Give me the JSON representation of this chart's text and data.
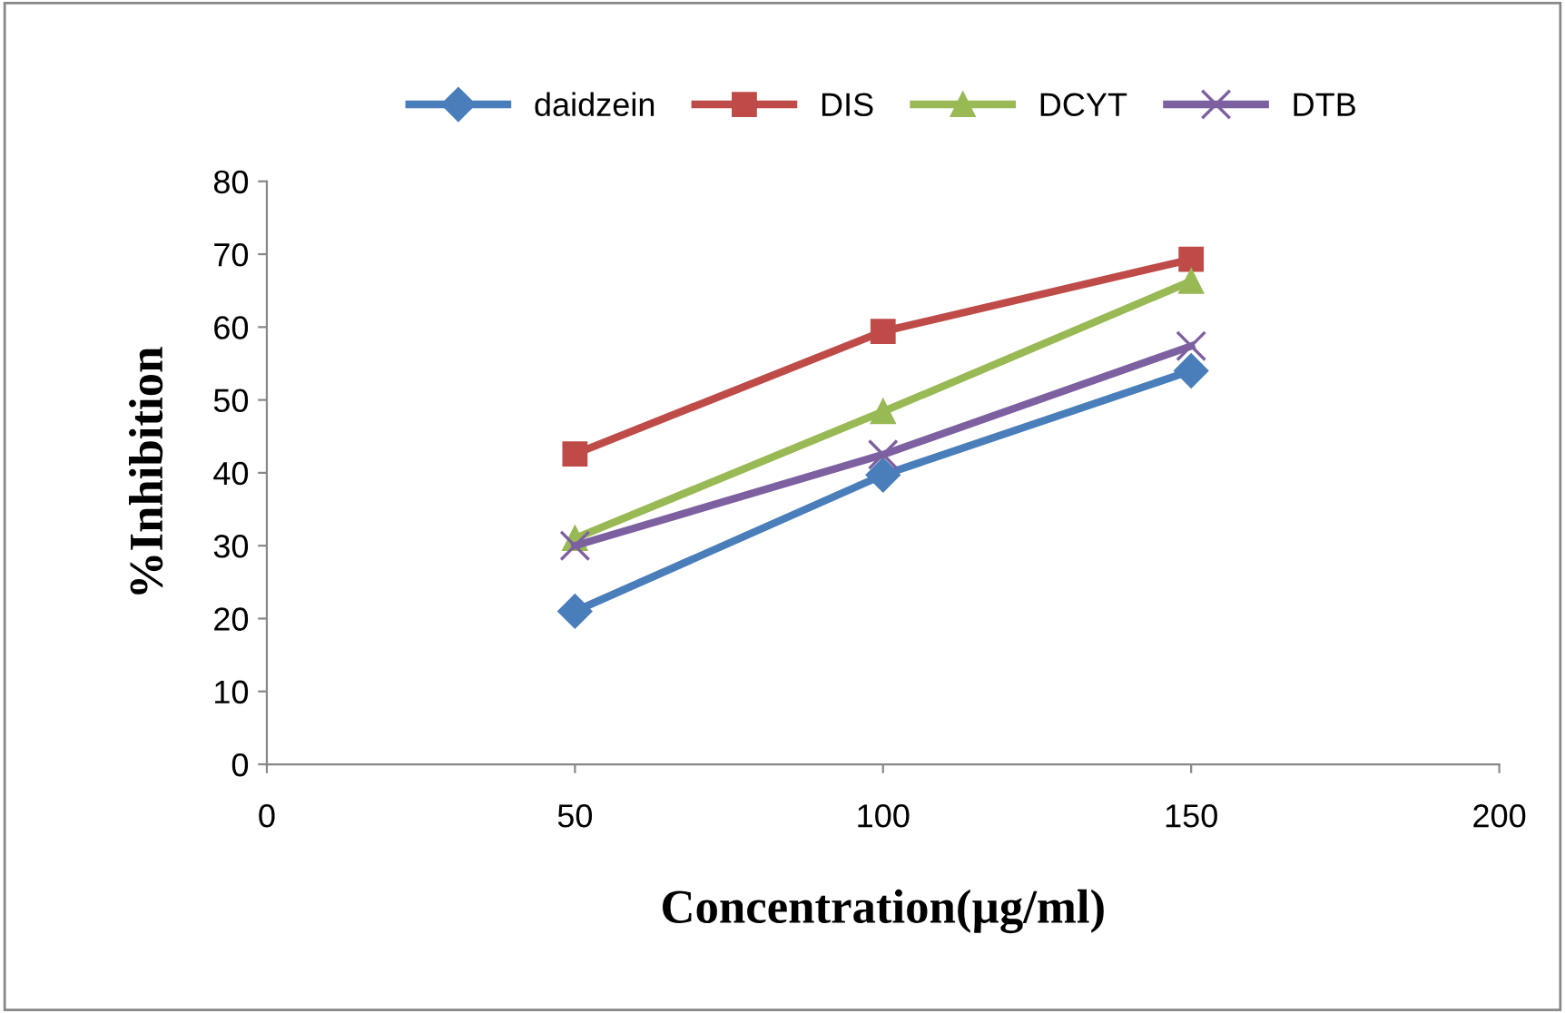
{
  "chart_data": {
    "type": "line",
    "xlabel": "Concentration(µg/ml)",
    "ylabel": "%Inhibition",
    "x": [
      50,
      100,
      150
    ],
    "series": [
      {
        "name": "daidzein",
        "color": "#4a7ebb",
        "marker": "diamond",
        "values": [
          21,
          39.7,
          54
        ]
      },
      {
        "name": "DIS",
        "color": "#be4b48",
        "marker": "square",
        "values": [
          42.6,
          59.4,
          69.3
        ]
      },
      {
        "name": "DCYT",
        "color": "#98b954",
        "marker": "triangle",
        "values": [
          31,
          48.4,
          66.3
        ]
      },
      {
        "name": "DTB",
        "color": "#7d60a0",
        "marker": "cross",
        "values": [
          30,
          42.5,
          57.4
        ]
      }
    ],
    "xlim": [
      0,
      200
    ],
    "xticks": [
      0,
      50,
      100,
      150,
      200
    ],
    "ylim": [
      0,
      80
    ],
    "yticks": [
      0,
      10,
      20,
      30,
      40,
      50,
      60,
      70,
      80
    ],
    "grid": false,
    "legend": "top",
    "line_style": "solid"
  }
}
